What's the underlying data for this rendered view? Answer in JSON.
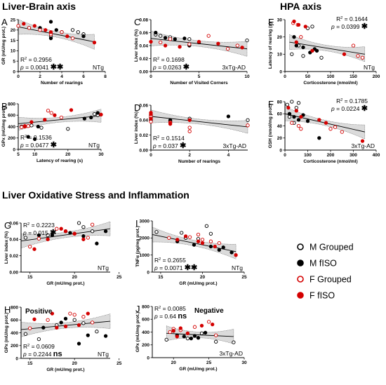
{
  "sections": {
    "liver_brain": "Liver-Brain axis",
    "hpa": "HPA axis",
    "oxidative": "Liver Oxidative Stress and Inflammation"
  },
  "legend": [
    {
      "label": "M Grouped",
      "marker": "open",
      "color": "#000000"
    },
    {
      "label": "M fISO",
      "marker": "filled",
      "color": "#000000"
    },
    {
      "label": "F Grouped",
      "marker": "open",
      "color": "#d40000"
    },
    {
      "label": "F fISO",
      "marker": "filled",
      "color": "#d40000"
    }
  ],
  "colors": {
    "male": "#000000",
    "female": "#d40000",
    "band": "#bdbdbd"
  },
  "chart_data": [
    {
      "panel": "A",
      "type": "scatter",
      "xlabel": "Number of rearings",
      "ylabel": "GR (mU/mg prot.)",
      "xlim": [
        0,
        8
      ],
      "ylim": [
        0,
        25
      ],
      "xticks": [
        "0",
        "2",
        "4",
        "6",
        "8"
      ],
      "yticks": [
        "0",
        "5",
        "10",
        "15",
        "20",
        "25"
      ],
      "fit": {
        "x": [
          0,
          7
        ],
        "y": [
          21.5,
          14.3
        ]
      },
      "r2": "0.2956",
      "p": "0.0041",
      "stars": "✱✱",
      "group": "NTg",
      "series": [
        {
          "name": "M Grouped",
          "x": [
            1,
            3,
            4,
            5,
            5.5,
            6
          ],
          "y": [
            21,
            17,
            19,
            20,
            19,
            18
          ]
        },
        {
          "name": "M fISO",
          "x": [
            2,
            3,
            3.5,
            4,
            6,
            3
          ],
          "y": [
            21,
            24,
            20,
            19,
            17,
            16
          ]
        },
        {
          "name": "F Grouped",
          "x": [
            0,
            1,
            2,
            3,
            4,
            5
          ],
          "y": [
            22,
            21,
            20,
            18,
            19,
            16
          ]
        },
        {
          "name": "F fISO",
          "x": [
            0.5,
            1.5,
            2.5,
            3,
            4.5,
            7
          ],
          "y": [
            23,
            22,
            20,
            19,
            17,
            14
          ]
        }
      ]
    },
    {
      "panel": "C",
      "type": "scatter",
      "xlabel": "Number of Visited Corners",
      "ylabel": "Liver index (%)",
      "xlim": [
        0,
        10
      ],
      "ylim": [
        0,
        0.08
      ],
      "xticks": [
        "0",
        "5",
        "10"
      ],
      "yticks": [
        "0.00",
        "0.02",
        "0.04",
        "0.06",
        "0.08"
      ],
      "fit": {
        "x": [
          0,
          10
        ],
        "y": [
          0.051,
          0.035
        ]
      },
      "r2": "0.1698",
      "p": "0.0263",
      "stars": "✱",
      "group": "3xTg-AD",
      "series": [
        {
          "name": "M Grouped",
          "x": [
            0.5,
            1,
            2,
            4,
            5,
            10
          ],
          "y": [
            0.057,
            0.055,
            0.053,
            0.05,
            0.045,
            0.048
          ]
        },
        {
          "name": "M fISO",
          "x": [
            0.5,
            1.5,
            2.5,
            3.5,
            5,
            4
          ],
          "y": [
            0.06,
            0.052,
            0.05,
            0.051,
            0.045,
            0.04
          ]
        },
        {
          "name": "F Grouped",
          "x": [
            1,
            2,
            4,
            6,
            8,
            9
          ],
          "y": [
            0.045,
            0.05,
            0.042,
            0.055,
            0.035,
            0.04
          ]
        },
        {
          "name": "F fISO",
          "x": [
            1.5,
            3,
            5,
            7,
            9.5,
            0
          ],
          "y": [
            0.04,
            0.038,
            0.046,
            0.043,
            0.037,
            0.046
          ]
        }
      ]
    },
    {
      "panel": "E",
      "type": "scatter",
      "xlabel": "Corticosterone (nmol/ml)",
      "ylabel": "Latency of rearing (s)",
      "xlim": [
        0,
        200
      ],
      "ylim": [
        0,
        30
      ],
      "xticks": [
        "0",
        "50",
        "100",
        "150",
        "200"
      ],
      "yticks": [
        "0",
        "10",
        "20",
        "30"
      ],
      "fit": {
        "x": [
          10,
          175
        ],
        "y": [
          17,
          10
        ]
      },
      "r2": "0.1644",
      "p": "0.0399",
      "stars": "✱",
      "group": "NTg",
      "series": [
        {
          "name": "M Grouped",
          "x": [
            15,
            30,
            50,
            60,
            80,
            40
          ],
          "y": [
            10,
            15,
            25,
            26,
            8,
            9
          ]
        },
        {
          "name": "M fISO",
          "x": [
            20,
            25,
            40,
            65,
            70,
            55
          ],
          "y": [
            20,
            15,
            14,
            13,
            12,
            11
          ]
        },
        {
          "name": "F Grouped",
          "x": [
            18,
            28,
            35,
            160,
            170,
            150
          ],
          "y": [
            28,
            27,
            20,
            9,
            8,
            15
          ]
        },
        {
          "name": "F fISO",
          "x": [
            20,
            30,
            45,
            60,
            25,
            130
          ],
          "y": [
            29,
            27,
            26,
            12,
            17,
            10
          ]
        }
      ]
    },
    {
      "panel": "B",
      "type": "scatter",
      "xlabel": "Latency of rearing (s)",
      "ylabel": "GPx (mU/mg prot.)",
      "xlim": [
        5,
        30
      ],
      "ylim": [
        0,
        800
      ],
      "xticks": [
        "5",
        "10",
        "20",
        "30"
      ],
      "yticks": [
        "0",
        "200",
        "400",
        "600",
        "800"
      ],
      "fit": {
        "x": [
          5,
          30
        ],
        "y": [
          450,
          590
        ]
      },
      "r2": "0.1536",
      "p": "0.0477",
      "stars": "✱",
      "group": "NTg",
      "series": [
        {
          "name": "M Grouped",
          "x": [
            6,
            9,
            12,
            20,
            28,
            29
          ],
          "y": [
            400,
            420,
            380,
            360,
            620,
            600
          ]
        },
        {
          "name": "M fISO",
          "x": [
            8,
            10,
            25,
            27,
            29,
            11
          ],
          "y": [
            220,
            180,
            540,
            560,
            640,
            400
          ]
        },
        {
          "name": "F Grouped",
          "x": [
            6,
            7,
            14,
            15,
            18,
            8
          ],
          "y": [
            390,
            400,
            680,
            640,
            560,
            410
          ]
        },
        {
          "name": "F fISO",
          "x": [
            7,
            9,
            13,
            16,
            21,
            30
          ],
          "y": [
            410,
            480,
            520,
            600,
            690,
            610
          ]
        }
      ]
    },
    {
      "panel": "D",
      "type": "scatter",
      "xlabel": "Number of rearings",
      "ylabel": "Liver index (%)",
      "xlim": [
        0,
        5
      ],
      "ylim": [
        0,
        0.06
      ],
      "xticks": [
        "0",
        "2",
        "4"
      ],
      "yticks": [
        "0.00",
        "0.02",
        "0.04",
        "0.06"
      ],
      "fit": {
        "x": [
          0,
          5
        ],
        "y": [
          0.045,
          0.031
        ]
      },
      "r2": "0.1514",
      "p": "0.037",
      "stars": "✱",
      "group": "3xTg-AD",
      "series": [
        {
          "name": "M Grouped",
          "x": [
            0,
            0,
            0,
            1,
            2,
            5
          ],
          "y": [
            0.047,
            0.044,
            0.041,
            0.039,
            0.042,
            0.04
          ]
        },
        {
          "name": "M fISO",
          "x": [
            0,
            0,
            0,
            1,
            1,
            4
          ],
          "y": [
            0.046,
            0.043,
            0.04,
            0.04,
            0.038,
            0.045
          ]
        },
        {
          "name": "F Grouped",
          "x": [
            0,
            0,
            1,
            2,
            2,
            5
          ],
          "y": [
            0.045,
            0.038,
            0.037,
            0.03,
            0.025,
            0.033
          ]
        },
        {
          "name": "F fISO",
          "x": [
            0,
            0,
            0,
            1,
            2,
            1
          ],
          "y": [
            0.05,
            0.048,
            0.042,
            0.036,
            0.04,
            0.035
          ]
        }
      ]
    },
    {
      "panel": "F",
      "type": "scatter",
      "xlabel": "Corticosterone (nmol/ml)",
      "ylabel": "GSH (nmol/mg prot.)",
      "xlim": [
        0,
        400
      ],
      "ylim": [
        0,
        80
      ],
      "xticks": [
        "0",
        "100",
        "200",
        "300",
        "400"
      ],
      "yticks": [
        "0",
        "20",
        "40",
        "60",
        "80"
      ],
      "fit": {
        "x": [
          0,
          350
        ],
        "y": [
          60,
          30
        ]
      },
      "r2": "0.1785",
      "p": "0.0224",
      "stars": "✱",
      "group": "3xTg-AD",
      "series": [
        {
          "name": "M Grouped",
          "x": [
            10,
            30,
            50,
            60,
            20,
            40
          ],
          "y": [
            75,
            80,
            70,
            78,
            55,
            45
          ]
        },
        {
          "name": "M fISO",
          "x": [
            20,
            40,
            60,
            80,
            100,
            150
          ],
          "y": [
            60,
            55,
            50,
            58,
            48,
            20
          ]
        },
        {
          "name": "F Grouped",
          "x": [
            30,
            60,
            70,
            200,
            220,
            250
          ],
          "y": [
            45,
            40,
            35,
            35,
            38,
            30
          ]
        },
        {
          "name": "F fISO",
          "x": [
            15,
            50,
            70,
            150,
            180,
            340
          ],
          "y": [
            70,
            65,
            55,
            50,
            45,
            15
          ]
        }
      ]
    },
    {
      "panel": "G",
      "type": "scatter",
      "xlabel": "GR (mU/mg prot.)",
      "ylabel": "Liver index (%)",
      "xlim": [
        14,
        24
      ],
      "ylim": [
        0,
        0.06
      ],
      "xticks": [
        "15",
        "20",
        "25"
      ],
      "yticks": [
        "0.00",
        "0.02",
        "0.04",
        "0.06"
      ],
      "fit": {
        "x": [
          14,
          24
        ],
        "y": [
          0.038,
          0.053
        ]
      },
      "r2": "0.2223",
      "p": "0.015",
      "stars": "✱",
      "group": "NTg",
      "series": [
        {
          "name": "M Grouped",
          "x": [
            14.5,
            17,
            19,
            20.5,
            21,
            22
          ],
          "y": [
            0.042,
            0.045,
            0.05,
            0.06,
            0.055,
            0.05
          ]
        },
        {
          "name": "M fISO",
          "x": [
            16,
            17.5,
            19.5,
            21,
            22.5,
            23.5
          ],
          "y": [
            0.045,
            0.045,
            0.048,
            0.044,
            0.035,
            0.05
          ]
        },
        {
          "name": "F Grouped",
          "x": [
            15,
            16,
            18,
            20,
            21.5,
            22
          ],
          "y": [
            0.031,
            0.041,
            0.053,
            0.047,
            0.042,
            0.058
          ]
        },
        {
          "name": "F fISO",
          "x": [
            15.5,
            17,
            18.5,
            19,
            20,
            21
          ],
          "y": [
            0.028,
            0.04,
            0.053,
            0.05,
            0.047,
            0.04
          ]
        }
      ]
    },
    {
      "panel": "I",
      "type": "scatter",
      "xlabel": "GR (mU/mg prot.)",
      "ylabel": "TNFα (pg/mg prot.)",
      "xlim": [
        14,
        25
      ],
      "ylim": [
        0,
        3000
      ],
      "xticks": [
        "15",
        "20",
        "25"
      ],
      "yticks": [
        "0",
        "1000",
        "2000",
        "3000"
      ],
      "fit": {
        "x": [
          14,
          24
        ],
        "y": [
          2200,
          1200
        ]
      },
      "r2": "0.2655",
      "p": "0.0071",
      "stars": "✱✱",
      "group": "NTg",
      "series": [
        {
          "name": "M Grouped",
          "x": [
            14.5,
            17.5,
            18,
            19.5,
            20.5,
            21
          ],
          "y": [
            2350,
            2300,
            2000,
            1950,
            2700,
            2250
          ]
        },
        {
          "name": "M fISO",
          "x": [
            17,
            19,
            21,
            22,
            22.5,
            23.5
          ],
          "y": [
            1800,
            1600,
            1500,
            1300,
            1450,
            1150
          ]
        },
        {
          "name": "F Grouped",
          "x": [
            16,
            18.5,
            19.5,
            20,
            21,
            22
          ],
          "y": [
            2000,
            2050,
            2200,
            1900,
            1800,
            1700
          ]
        },
        {
          "name": "F fISO",
          "x": [
            17,
            18,
            19.5,
            20,
            21.5,
            24
          ],
          "y": [
            1900,
            2100,
            1800,
            1700,
            1500,
            1000
          ]
        }
      ]
    },
    {
      "panel": "H",
      "type": "scatter",
      "xlabel": "GR (mU/mg  prot.)",
      "ylabel": "GPx (mU/mg prot.)",
      "xlim": [
        14,
        24
      ],
      "ylim": [
        0,
        800
      ],
      "xticks": [
        "15",
        "20",
        "25"
      ],
      "yticks": [
        "0",
        "200",
        "400",
        "600",
        "800"
      ],
      "fit": {
        "x": [
          14,
          24
        ],
        "y": [
          450,
          580
        ]
      },
      "r2": "0.0609",
      "p": "0.2244",
      "stars": "ns",
      "group": "NTg",
      "annotation": "Positive",
      "series": [
        {
          "name": "M Grouped",
          "x": [
            14.5,
            16,
            18,
            20,
            21,
            22.5
          ],
          "y": [
            380,
            300,
            520,
            600,
            550,
            420
          ]
        },
        {
          "name": "M fISO",
          "x": [
            16.5,
            18.5,
            19,
            20.5,
            21.5,
            23.5
          ],
          "y": [
            480,
            560,
            620,
            230,
            360,
            350
          ]
        },
        {
          "name": "F Grouped",
          "x": [
            15,
            17,
            19.5,
            20,
            21,
            22
          ],
          "y": [
            470,
            600,
            700,
            680,
            650,
            560
          ]
        },
        {
          "name": "F fISO",
          "x": [
            15.5,
            17.5,
            18,
            19,
            20.5,
            21.5
          ],
          "y": [
            610,
            700,
            480,
            500,
            520,
            700
          ]
        }
      ]
    },
    {
      "panel": "J",
      "type": "scatter",
      "xlabel": "GR (mU/mg  prot.)",
      "ylabel": "GPx (mU/mg prot.)",
      "xlim": [
        17,
        30
      ],
      "ylim": [
        0,
        800
      ],
      "xticks": [
        "20",
        "25",
        "30"
      ],
      "yticks": [
        "0",
        "200",
        "400",
        "600",
        "800"
      ],
      "fit": {
        "x": [
          19,
          28.5
        ],
        "y": [
          380,
          330
        ]
      },
      "r2": "0.0085",
      "p": "0.64",
      "stars": "ns",
      "group": "3xTg-AD",
      "annotation": "Negative",
      "series": [
        {
          "name": "M Grouped",
          "x": [
            19,
            20,
            22,
            24,
            26,
            28.5
          ],
          "y": [
            280,
            420,
            300,
            380,
            250,
            240
          ]
        },
        {
          "name": "M fISO",
          "x": [
            20.5,
            21.5,
            22.5,
            23,
            24.5,
            23.5
          ],
          "y": [
            350,
            330,
            300,
            340,
            390,
            310
          ]
        },
        {
          "name": "F Grouped",
          "x": [
            19.5,
            20,
            21,
            23,
            25,
            26
          ],
          "y": [
            400,
            450,
            430,
            480,
            560,
            350
          ]
        },
        {
          "name": "F fISO",
          "x": [
            20,
            21,
            22,
            24,
            20.5,
            25.5
          ],
          "y": [
            420,
            460,
            380,
            500,
            330,
            520
          ]
        }
      ]
    }
  ]
}
